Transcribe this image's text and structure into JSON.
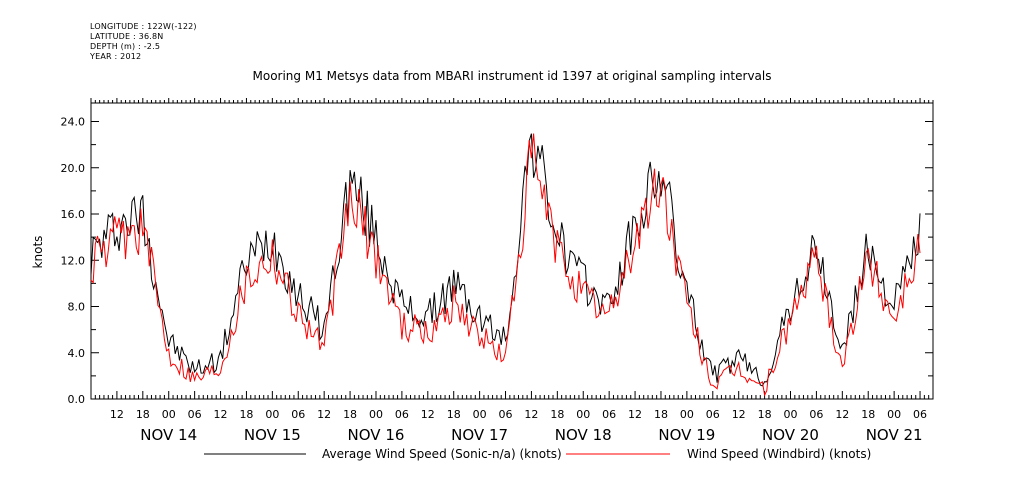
{
  "metadata": [
    "LONGITUDE : 122W(-122)",
    "LATITUDE : 36.8N",
    "DEPTH (m) : -2.5",
    "YEAR : 2012"
  ],
  "chart_data": {
    "type": "line",
    "title": "Mooring M1 Metsys data from MBARI instrument id 1397 at original sampling intervals",
    "ylabel": "knots",
    "xlabel": "",
    "ylim": [
      0,
      25.6
    ],
    "xlim_hours": "Nov 13 06:00 to Nov 21 09:00 (2012)",
    "yticks": [
      "0.0",
      "4.0",
      "8.0",
      "12.0",
      "16.0",
      "20.0",
      "24.0"
    ],
    "xtick_hour_labels": [
      "12",
      "18",
      "00",
      "06",
      "12",
      "18",
      "00",
      "06",
      "12",
      "18",
      "00",
      "06",
      "12",
      "18",
      "00",
      "06",
      "12",
      "18",
      "00",
      "06",
      "12",
      "18",
      "00",
      "06",
      "12",
      "18",
      "00",
      "06",
      "12",
      "18",
      "00",
      "06"
    ],
    "xtick_day_labels": [
      "NOV 14",
      "NOV 15",
      "NOV 16",
      "NOV 17",
      "NOV 18",
      "NOV 19",
      "NOV 20",
      "NOV 21"
    ],
    "legend_placement": "bottom",
    "series": [
      {
        "name": "Average Wind Speed (Sonic-n/a) (knots)",
        "color": "#000000",
        "x": [
          "2012-11-13 06:00",
          "2012-11-13 12:00",
          "2012-11-13 18:00",
          "2012-11-14 00:00",
          "2012-11-14 06:00",
          "2012-11-14 12:00",
          "2012-11-14 18:00",
          "2012-11-15 00:00",
          "2012-11-15 06:00",
          "2012-11-15 12:00",
          "2012-11-15 18:00",
          "2012-11-16 00:00",
          "2012-11-16 06:00",
          "2012-11-16 12:00",
          "2012-11-16 18:00",
          "2012-11-17 00:00",
          "2012-11-17 06:00",
          "2012-11-17 12:00",
          "2012-11-17 18:00",
          "2012-11-18 00:00",
          "2012-11-18 06:00",
          "2012-11-18 12:00",
          "2012-11-18 18:00",
          "2012-11-19 00:00",
          "2012-11-19 06:00",
          "2012-11-19 12:00",
          "2012-11-19 18:00",
          "2012-11-20 00:00",
          "2012-11-20 06:00",
          "2012-11-20 12:00",
          "2012-11-20 18:00",
          "2012-11-21 00:00",
          "2012-11-21 06:00"
        ],
        "values": [
          12.5,
          15.0,
          16.0,
          5.0,
          2.5,
          3.5,
          12.0,
          14.0,
          9.0,
          6.0,
          19.0,
          14.0,
          8.0,
          7.0,
          10.0,
          7.0,
          5.0,
          23.0,
          14.0,
          10.0,
          8.0,
          15.0,
          20.0,
          9.0,
          2.0,
          3.5,
          1.5,
          8.0,
          13.0,
          4.0,
          13.0,
          8.0,
          14.5
        ]
      },
      {
        "name": "Wind Speed (Windbird) (knots)",
        "color": "#ff0000",
        "x": [
          "2012-11-13 06:00",
          "2012-11-13 12:00",
          "2012-11-13 18:00",
          "2012-11-14 00:00",
          "2012-11-14 06:00",
          "2012-11-14 12:00",
          "2012-11-14 18:00",
          "2012-11-15 00:00",
          "2012-11-15 06:00",
          "2012-11-15 12:00",
          "2012-11-15 18:00",
          "2012-11-16 00:00",
          "2012-11-16 06:00",
          "2012-11-16 12:00",
          "2012-11-16 18:00",
          "2012-11-17 00:00",
          "2012-11-17 06:00",
          "2012-11-17 12:00",
          "2012-11-17 18:00",
          "2012-11-18 00:00",
          "2012-11-18 06:00",
          "2012-11-18 12:00",
          "2012-11-18 18:00",
          "2012-11-19 00:00",
          "2012-11-19 06:00",
          "2012-11-19 12:00",
          "2012-11-19 18:00",
          "2012-11-20 00:00",
          "2012-11-20 06:00",
          "2012-11-20 12:00",
          "2012-11-20 18:00",
          "2012-11-21 00:00",
          "2012-11-21 06:00"
        ],
        "values": [
          11.5,
          13.8,
          15.0,
          4.0,
          1.8,
          2.8,
          10.5,
          12.8,
          7.5,
          4.5,
          17.5,
          12.5,
          6.5,
          5.5,
          8.5,
          5.5,
          3.5,
          21.0,
          12.8,
          9.0,
          7.0,
          13.8,
          18.8,
          8.0,
          1.2,
          2.6,
          0.8,
          7.0,
          12.0,
          3.0,
          12.0,
          7.0,
          13.5
        ]
      }
    ]
  }
}
